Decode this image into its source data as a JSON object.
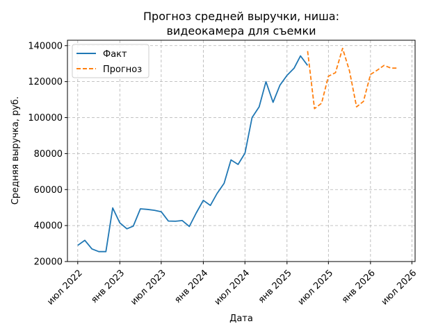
{
  "chart_data": {
    "type": "line",
    "title_lines": [
      "Прогноз средней выручки, ниша:",
      "видеокамера для съемки"
    ],
    "xlabel": "Дата",
    "ylabel": "Средняя выручка, руб.",
    "ylim": [
      20000,
      143000
    ],
    "xlim": [
      "2022-05-17",
      "2026-07-15"
    ],
    "grid": true,
    "legend_position": "top-left",
    "yticks": [
      20000,
      40000,
      60000,
      80000,
      100000,
      120000,
      140000
    ],
    "xticks": [
      {
        "date": "2022-07-01",
        "label": "июл 2022"
      },
      {
        "date": "2023-01-01",
        "label": "янв 2023"
      },
      {
        "date": "2023-07-01",
        "label": "июл 2023"
      },
      {
        "date": "2024-01-01",
        "label": "янв 2024"
      },
      {
        "date": "2024-07-01",
        "label": "июл 2024"
      },
      {
        "date": "2025-01-01",
        "label": "янв 2025"
      },
      {
        "date": "2025-07-01",
        "label": "июл 2025"
      },
      {
        "date": "2026-01-01",
        "label": "янв 2026"
      },
      {
        "date": "2026-07-01",
        "label": "июл 2026"
      }
    ],
    "series": [
      {
        "name": "Факт",
        "color": "#1f77b4",
        "dash": "solid",
        "x": [
          "2022-07-01",
          "2022-08-01",
          "2022-09-01",
          "2022-10-01",
          "2022-11-01",
          "2022-12-01",
          "2023-01-01",
          "2023-02-01",
          "2023-03-01",
          "2023-04-01",
          "2023-05-01",
          "2023-06-01",
          "2023-07-01",
          "2023-08-01",
          "2023-09-01",
          "2023-10-01",
          "2023-11-01",
          "2023-12-01",
          "2024-01-01",
          "2024-02-01",
          "2024-03-01",
          "2024-04-01",
          "2024-05-01",
          "2024-06-01",
          "2024-07-01",
          "2024-08-01",
          "2024-09-01",
          "2024-10-01",
          "2024-11-01",
          "2024-12-01",
          "2025-01-01",
          "2025-02-01",
          "2025-03-01",
          "2025-04-01"
        ],
        "y": [
          29000,
          31800,
          27000,
          25500,
          25500,
          49800,
          41500,
          38200,
          39700,
          49300,
          49000,
          48500,
          47700,
          42500,
          42400,
          42800,
          39500,
          47000,
          54000,
          51200,
          57800,
          63500,
          76500,
          74000,
          80200,
          100000,
          106000,
          120000,
          108500,
          118000,
          123500,
          127500,
          134300,
          129000
        ]
      },
      {
        "name": "Прогноз",
        "color": "#ff7f0e",
        "dash": "dashed",
        "x": [
          "2025-04-01",
          "2025-05-01",
          "2025-06-01",
          "2025-07-01",
          "2025-08-01",
          "2025-09-01",
          "2025-10-01",
          "2025-11-01",
          "2025-12-01",
          "2026-01-01",
          "2026-02-01",
          "2026-03-01",
          "2026-04-01",
          "2026-05-01"
        ],
        "y": [
          137000,
          105000,
          108000,
          123000,
          125000,
          138500,
          126000,
          106000,
          109000,
          124000,
          126500,
          129000,
          127500,
          127500
        ]
      }
    ]
  }
}
